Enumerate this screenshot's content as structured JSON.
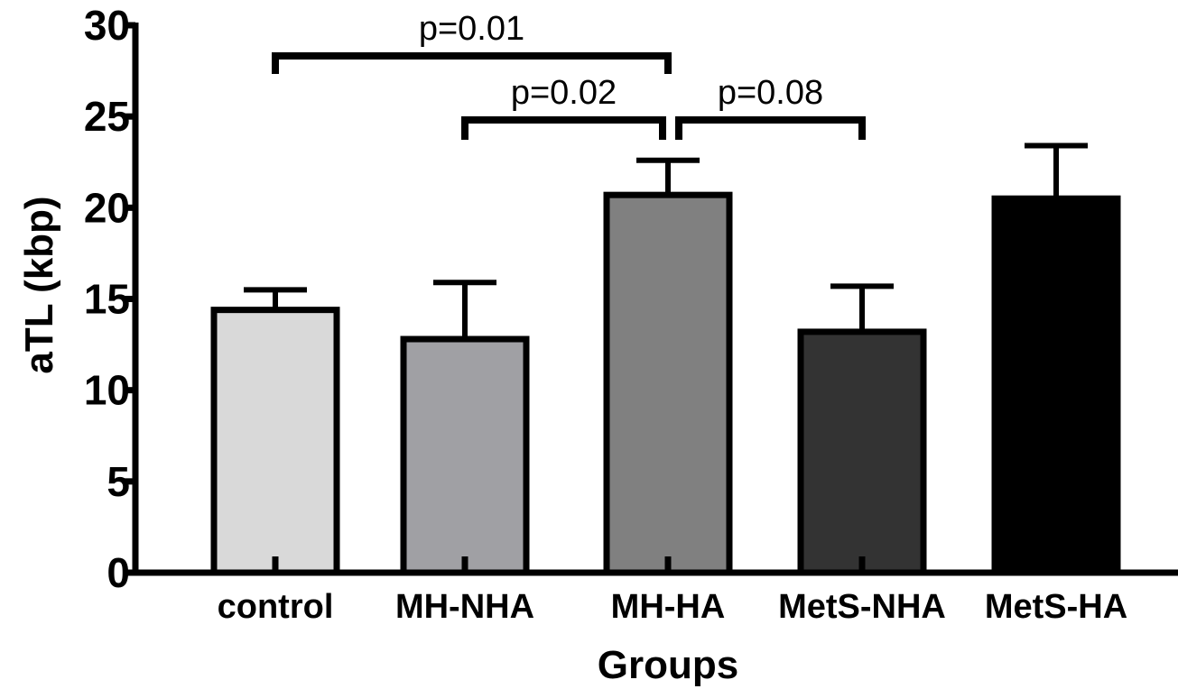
{
  "chart_data": {
    "type": "bar",
    "title": "",
    "xlabel": "Groups",
    "ylabel": "aTL (kbp)",
    "ylim": [
      0,
      30
    ],
    "yticks": [
      0,
      5,
      10,
      15,
      20,
      25,
      30
    ],
    "ytick_labels": [
      "0",
      "5",
      "10",
      "15",
      "20",
      "25",
      "30"
    ],
    "grid": false,
    "categories": [
      "control",
      "MH-NHA",
      "MH-HA",
      "MetS-NHA",
      "MetS-HA"
    ],
    "values": [
      14.4,
      12.8,
      20.7,
      13.2,
      20.5
    ],
    "errors": [
      1.1,
      3.1,
      1.9,
      2.5,
      2.9
    ],
    "colors": [
      "#d9d9d9",
      "#a0a0a4",
      "#808080",
      "#333333",
      "#000000"
    ],
    "comparisons": [
      {
        "from": 0,
        "to": 2,
        "label": "p=0.01"
      },
      {
        "from": 1,
        "to": 2,
        "label": "p=0.02"
      },
      {
        "from": 2,
        "to": 3,
        "label": "p=0.08"
      }
    ]
  }
}
